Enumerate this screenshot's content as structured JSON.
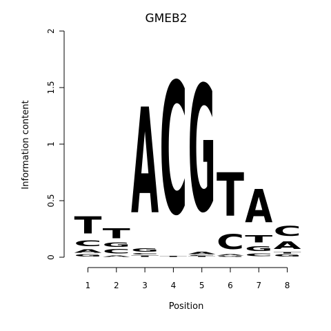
{
  "chart_data": {
    "type": "sequence-logo",
    "title": "GMEB2",
    "xlabel": "Position",
    "ylabel": "Information content",
    "ylim": [
      0,
      2
    ],
    "yticks": [
      0,
      0.5,
      1,
      1.5,
      2
    ],
    "ytick_labels": [
      "0",
      "0.5",
      "1",
      "1.5",
      "2"
    ],
    "positions": [
      1,
      2,
      3,
      4,
      5,
      6,
      7,
      8
    ],
    "xtick_labels": [
      "1",
      "2",
      "3",
      "4",
      "5",
      "6",
      "7",
      "8"
    ],
    "colors": {
      "A": "#00ee00",
      "C": "#0000ee",
      "G": "#ffa500",
      "T": "#ff0000"
    },
    "stacks": [
      {
        "position": 1,
        "letters": [
          {
            "base": "G",
            "height": 0.03
          },
          {
            "base": "A",
            "height": 0.05
          },
          {
            "base": "C",
            "height": 0.08
          },
          {
            "base": "T",
            "height": 0.24
          }
        ]
      },
      {
        "position": 2,
        "letters": [
          {
            "base": "A",
            "height": 0.02
          },
          {
            "base": "C",
            "height": 0.06
          },
          {
            "base": "G",
            "height": 0.06
          },
          {
            "base": "T",
            "height": 0.14
          }
        ]
      },
      {
        "position": 3,
        "letters": [
          {
            "base": "T",
            "height": 0.02
          },
          {
            "base": "C",
            "height": 0.02
          },
          {
            "base": "G",
            "height": 0.05
          },
          {
            "base": "A",
            "height": 1.5
          }
        ]
      },
      {
        "position": 4,
        "letters": [
          {
            "base": "T",
            "height": 0.01
          },
          {
            "base": "C",
            "height": 1.87
          }
        ]
      },
      {
        "position": 5,
        "letters": [
          {
            "base": "T",
            "height": 0.01
          },
          {
            "base": "C",
            "height": 0.01
          },
          {
            "base": "A",
            "height": 0.03
          },
          {
            "base": "G",
            "height": 1.79
          }
        ]
      },
      {
        "position": 6,
        "letters": [
          {
            "base": "G",
            "height": 0.01
          },
          {
            "base": "A",
            "height": 0.02
          },
          {
            "base": "C",
            "height": 0.21
          },
          {
            "base": "T",
            "height": 0.62
          }
        ]
      },
      {
        "position": 7,
        "letters": [
          {
            "base": "C",
            "height": 0.04
          },
          {
            "base": "G",
            "height": 0.07
          },
          {
            "base": "T",
            "height": 0.1
          },
          {
            "base": "A",
            "height": 0.47
          }
        ]
      },
      {
        "position": 8,
        "letters": [
          {
            "base": "G",
            "height": 0.03
          },
          {
            "base": "T",
            "height": 0.02
          },
          {
            "base": "A",
            "height": 0.11
          },
          {
            "base": "C",
            "height": 0.14
          }
        ]
      }
    ]
  }
}
